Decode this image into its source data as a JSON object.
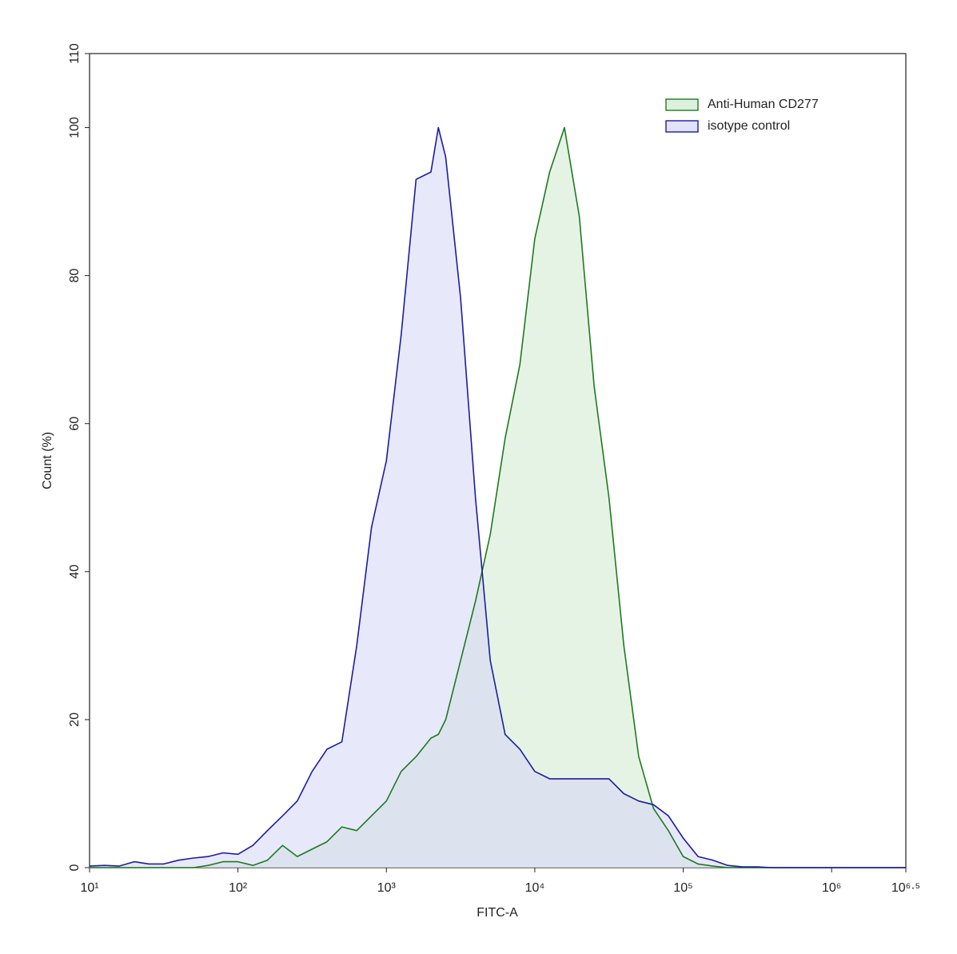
{
  "chart_data": {
    "type": "histogram-overlay",
    "x_label": "FITC-A",
    "y_label": "Count  (%)",
    "xscale": "log",
    "xlim": [
      10,
      3162278
    ],
    "xticks": [
      {
        "value": 10,
        "label": "10¹"
      },
      {
        "value": 100,
        "label": "10²"
      },
      {
        "value": 1000,
        "label": "10³"
      },
      {
        "value": 10000,
        "label": "10⁴"
      },
      {
        "value": 100000,
        "label": "10⁵"
      },
      {
        "value": 1000000,
        "label": "10⁶"
      },
      {
        "value": 3162278,
        "label": "10⁶·⁵"
      }
    ],
    "ylim": [
      0,
      110
    ],
    "yticks": [
      0,
      20,
      40,
      60,
      80,
      100,
      110
    ],
    "legend": "upper right",
    "x": [
      10,
      12.6,
      15.8,
      20,
      25.1,
      31.6,
      39.8,
      50.1,
      63.1,
      79.4,
      100,
      126,
      158,
      200,
      251,
      316,
      398,
      501,
      631,
      794,
      1000,
      1259,
      1585,
      1995,
      2239,
      2512,
      3162,
      3981,
      5012,
      6310,
      7943,
      10000,
      12589,
      15849,
      19953,
      25119,
      31623,
      39811,
      50119,
      63096,
      79433,
      100000,
      125893,
      158489,
      199526,
      251189,
      316228,
      398107,
      501187,
      630957,
      794328,
      1000000,
      1258925,
      1584893,
      1995262,
      2511886,
      3162278
    ],
    "series": [
      {
        "name": "Anti-Human CD277",
        "color": "#1e7a1e",
        "fill_color": "#cfe9cf",
        "values": [
          0,
          0,
          0,
          0,
          0,
          0,
          0,
          0,
          0.3,
          0.8,
          0.8,
          0.3,
          1,
          3,
          1.5,
          2.5,
          3.5,
          5.5,
          5,
          7,
          9,
          13,
          15,
          17.5,
          18,
          20,
          28,
          36,
          45,
          58,
          68,
          85,
          94,
          100,
          88,
          65,
          50,
          30,
          15,
          8,
          5,
          1.5,
          0.5,
          0.2,
          0,
          0,
          0,
          0,
          0,
          0,
          0,
          0,
          0,
          0,
          0,
          0,
          0
        ]
      },
      {
        "name": "isotype control",
        "color": "#1c1ca0",
        "fill_color": "#d6d6f8",
        "values": [
          0.2,
          0.3,
          0.2,
          0.8,
          0.5,
          0.5,
          1,
          1.3,
          1.5,
          2,
          1.8,
          3,
          5,
          7,
          9,
          13,
          16,
          17,
          30,
          46,
          55,
          72,
          93,
          94,
          100,
          96,
          77,
          50,
          28,
          18,
          16,
          13,
          12,
          12,
          12,
          12,
          12,
          10,
          9,
          8.5,
          7,
          4,
          1.5,
          1,
          0.3,
          0.1,
          0.1,
          0,
          0,
          0,
          0,
          0,
          0,
          0,
          0,
          0,
          0
        ]
      }
    ]
  }
}
